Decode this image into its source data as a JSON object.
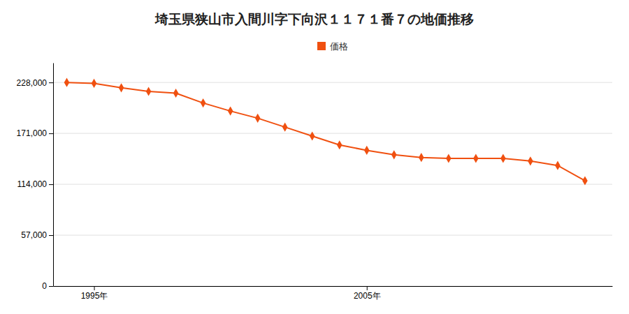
{
  "chart_data": {
    "type": "line",
    "title": "埼玉県狭山市入間川字下向沢１１７１番７の地価推移",
    "x": [
      1994,
      1995,
      1996,
      1997,
      1998,
      1999,
      2000,
      2001,
      2002,
      2003,
      2004,
      2005,
      2006,
      2007,
      2008,
      2009,
      2010,
      2011,
      2012,
      2013
    ],
    "series": [
      {
        "name": "価格",
        "color": "#f05010",
        "marker": "diamond",
        "line_style": "solid",
        "values": [
          228000,
          227000,
          222000,
          218000,
          216000,
          205000,
          196000,
          188000,
          178000,
          168000,
          158000,
          152000,
          147000,
          144000,
          143000,
          143000,
          143000,
          140000,
          135000,
          118000
        ]
      }
    ],
    "xlim": [
      1993.5,
      2014.0
    ],
    "xticks": [
      {
        "value": 1995,
        "label": "1995年"
      },
      {
        "value": 2005,
        "label": "2005年"
      }
    ],
    "ylim": [
      0,
      250000
    ],
    "yticks": [
      0,
      {
        "value": 57000,
        "label": "57,000"
      },
      {
        "value": 114000,
        "label": "114,000"
      },
      {
        "value": 171000,
        "label": "171,000"
      },
      {
        "value": 228000,
        "label": "228,000"
      }
    ],
    "grid": "y",
    "legend": "top"
  }
}
